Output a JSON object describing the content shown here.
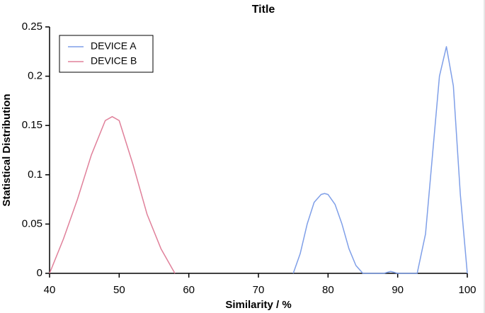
{
  "chart_data": {
    "type": "line",
    "title": "Title",
    "x_label": "Similarity / %",
    "y_label": "Statistical Distribution",
    "xlim": [
      40,
      100
    ],
    "xticks": [
      40,
      50,
      60,
      70,
      80,
      90,
      100
    ],
    "ylim": [
      0,
      0.25
    ],
    "yticks": [
      0,
      0.05,
      0.1,
      0.15,
      0.2,
      0.25
    ],
    "grid": false,
    "legend": "upper left",
    "series": [
      {
        "name": "DEVICE A",
        "color": "#7f9fe8",
        "x": [
          75,
          76,
          77,
          78,
          79,
          79.5,
          80,
          81,
          82,
          83,
          84,
          85,
          88,
          89,
          90,
          92.8,
          94,
          95,
          96,
          97,
          98,
          99,
          100
        ],
        "values": [
          0,
          0.02,
          0.05,
          0.072,
          0.08,
          0.081,
          0.08,
          0.07,
          0.05,
          0.025,
          0.008,
          0,
          0,
          0.002,
          0,
          0,
          0.04,
          0.12,
          0.2,
          0.23,
          0.19,
          0.08,
          0
        ]
      },
      {
        "name": "DEVICE B",
        "color": "#e0809a",
        "x": [
          40,
          42,
          44,
          46,
          48,
          49,
          50,
          52,
          54,
          56,
          58
        ],
        "values": [
          0,
          0.035,
          0.075,
          0.12,
          0.155,
          0.159,
          0.155,
          0.11,
          0.06,
          0.025,
          0
        ]
      }
    ]
  }
}
